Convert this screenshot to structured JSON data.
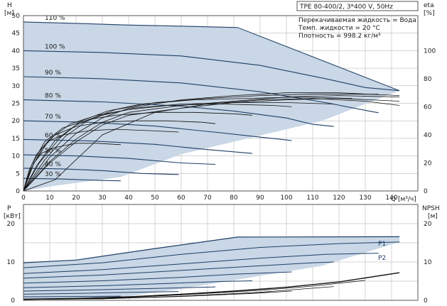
{
  "title": "TPE 80-400/2, 3*400 V, 50Hz",
  "info_lines": [
    "Перекачиваемая жидкость = Вода",
    "Темп. жидкости = 20 °C",
    "Плотность = 998.2 кг/м³"
  ],
  "colors": {
    "envelope": "#c9d7e6",
    "curve": "#1f3f66",
    "eta": "#111111",
    "grid": "#aaaaaa",
    "text": "#1a1a1a"
  },
  "chart_data": [
    {
      "type": "line",
      "name": "head",
      "title": "TPE 80-400/2, 3*400 V, 50Hz",
      "xlabel": "Q [м³/ч]",
      "ylabel_left": [
        "H",
        "[м]"
      ],
      "ylabel_right": [
        "eta",
        "[%]"
      ],
      "xlim": [
        0,
        150
      ],
      "ylim": [
        0,
        50
      ],
      "y2lim": [
        0,
        125
      ],
      "xticks": [
        "0",
        "10",
        "20",
        "30",
        "40",
        "50",
        "60",
        "70",
        "80",
        "90",
        "100",
        "110",
        "120",
        "130",
        "140"
      ],
      "yticks": [
        "0",
        "5",
        "10",
        "15",
        "20",
        "25",
        "30",
        "35",
        "40",
        "45",
        "50"
      ],
      "y2ticks": [
        "0",
        "20",
        "40",
        "60",
        "80",
        "100"
      ],
      "grid": true,
      "envelope": [
        [
          0,
          48.2
        ],
        [
          81.5,
          46.6
        ],
        [
          143,
          28.6
        ],
        [
          113.5,
          20
        ],
        [
          60,
          10.5
        ],
        [
          37,
          4
        ],
        [
          12,
          1.5
        ],
        [
          0,
          0
        ]
      ],
      "series": [
        {
          "label": "110 %",
          "points": [
            [
              0,
              48.2
            ],
            [
              20,
              47.8
            ],
            [
              40,
              47.3
            ],
            [
              60,
              47.0
            ],
            [
              81.5,
              46.6
            ]
          ]
        },
        {
          "label": "100 %",
          "points": [
            [
              0,
              40.0
            ],
            [
              30,
              39.5
            ],
            [
              60,
              38.5
            ],
            [
              90,
              35.8
            ],
            [
              115,
              32.0
            ],
            [
              130,
              29.5
            ],
            [
              143,
              28.6
            ]
          ]
        },
        {
          "label": "90 %",
          "points": [
            [
              0,
              32.6
            ],
            [
              30,
              32.0
            ],
            [
              60,
              30.8
            ],
            [
              90,
              28.3
            ],
            [
              115,
              25.2
            ],
            [
              130,
              23.0
            ],
            [
              135,
              22.3
            ]
          ]
        },
        {
          "label": "80 %",
          "points": [
            [
              0,
              26.0
            ],
            [
              30,
              25.4
            ],
            [
              60,
              24.2
            ],
            [
              80,
              22.8
            ],
            [
              100,
              20.8
            ],
            [
              110,
              19.0
            ],
            [
              118,
              18.4
            ]
          ]
        },
        {
          "label": "70 %",
          "points": [
            [
              0,
              20.0
            ],
            [
              25,
              19.6
            ],
            [
              50,
              18.5
            ],
            [
              75,
              16.6
            ],
            [
              92,
              15.2
            ],
            [
              102,
              14.4
            ]
          ]
        },
        {
          "label": "60 %",
          "points": [
            [
              0,
              14.7
            ],
            [
              25,
              14.3
            ],
            [
              50,
              13.3
            ],
            [
              70,
              11.8
            ],
            [
              87,
              10.7
            ]
          ]
        },
        {
          "label": "50 %",
          "points": [
            [
              0,
              10.3
            ],
            [
              20,
              10.0
            ],
            [
              40,
              9.3
            ],
            [
              60,
              8.0
            ],
            [
              73,
              7.6
            ]
          ]
        },
        {
          "label": "40 %",
          "points": [
            [
              0,
              6.5
            ],
            [
              15,
              6.3
            ],
            [
              30,
              5.8
            ],
            [
              45,
              5.0
            ],
            [
              59,
              4.7
            ]
          ]
        },
        {
          "label": "30 %",
          "points": [
            [
              0,
              3.6
            ],
            [
              15,
              3.4
            ],
            [
              30,
              3.0
            ],
            [
              37,
              2.9
            ]
          ]
        }
      ],
      "eta_curves": [
        [
          [
            0,
            0
          ],
          [
            10,
            21
          ],
          [
            20,
            37
          ],
          [
            30,
            49
          ],
          [
            40,
            56
          ],
          [
            60,
            61
          ],
          [
            80,
            64
          ],
          [
            100,
            67
          ],
          [
            120,
            68
          ],
          [
            143,
            67
          ]
        ],
        [
          [
            0,
            0
          ],
          [
            10,
            20
          ],
          [
            20,
            35
          ],
          [
            30,
            47
          ],
          [
            40,
            54
          ],
          [
            60,
            59
          ],
          [
            80,
            63
          ],
          [
            100,
            65
          ],
          [
            120,
            66
          ],
          [
            143,
            64
          ]
        ],
        [
          [
            0,
            0
          ],
          [
            10,
            24
          ],
          [
            20,
            41
          ],
          [
            30,
            52
          ],
          [
            40,
            59
          ],
          [
            60,
            65
          ],
          [
            80,
            68
          ],
          [
            100,
            70
          ],
          [
            120,
            70
          ],
          [
            143,
            68
          ]
        ],
        [
          [
            0,
            0
          ],
          [
            8,
            22
          ],
          [
            16,
            39
          ],
          [
            25,
            51
          ],
          [
            35,
            58
          ],
          [
            50,
            63
          ],
          [
            70,
            66
          ],
          [
            90,
            68
          ],
          [
            110,
            69
          ],
          [
            135,
            69
          ]
        ],
        [
          [
            0,
            0
          ],
          [
            6,
            20
          ],
          [
            14,
            38
          ],
          [
            22,
            50
          ],
          [
            32,
            57
          ],
          [
            45,
            62
          ],
          [
            65,
            65
          ],
          [
            85,
            66
          ],
          [
            105,
            67
          ],
          [
            125,
            66
          ]
        ],
        [
          [
            0,
            0
          ],
          [
            5,
            18
          ],
          [
            12,
            36
          ],
          [
            20,
            47
          ],
          [
            30,
            54
          ],
          [
            42,
            59
          ],
          [
            60,
            62
          ],
          [
            80,
            63
          ],
          [
            100,
            63
          ],
          [
            118,
            62
          ]
        ],
        [
          [
            0,
            0
          ],
          [
            4,
            20
          ],
          [
            10,
            37
          ],
          [
            18,
            48
          ],
          [
            28,
            54
          ],
          [
            40,
            58
          ],
          [
            55,
            61
          ],
          [
            75,
            62
          ],
          [
            95,
            61
          ],
          [
            102,
            60
          ]
        ],
        [
          [
            0,
            0
          ],
          [
            3,
            18
          ],
          [
            8,
            35
          ],
          [
            15,
            45
          ],
          [
            25,
            51
          ],
          [
            35,
            54
          ],
          [
            50,
            56
          ],
          [
            65,
            56
          ],
          [
            80,
            55
          ],
          [
            87,
            54
          ]
        ],
        [
          [
            0,
            0
          ],
          [
            3,
            16
          ],
          [
            7,
            30
          ],
          [
            12,
            40
          ],
          [
            20,
            46
          ],
          [
            30,
            49
          ],
          [
            42,
            50
          ],
          [
            55,
            50
          ],
          [
            68,
            49
          ],
          [
            73,
            48
          ]
        ],
        [
          [
            0,
            0
          ],
          [
            2,
            14
          ],
          [
            5,
            26
          ],
          [
            9,
            35
          ],
          [
            15,
            40
          ],
          [
            25,
            43
          ],
          [
            35,
            44
          ],
          [
            48,
            43
          ],
          [
            59,
            42
          ]
        ],
        [
          [
            0,
            0
          ],
          [
            2,
            11
          ],
          [
            4,
            20
          ],
          [
            7,
            27
          ],
          [
            12,
            31
          ],
          [
            20,
            34
          ],
          [
            28,
            34
          ],
          [
            37,
            33
          ]
        ],
        [
          [
            0,
            0
          ],
          [
            12,
            8
          ],
          [
            30,
            40
          ],
          [
            50,
            56
          ],
          [
            70,
            62
          ],
          [
            90,
            65
          ],
          [
            110,
            66
          ],
          [
            130,
            64
          ],
          [
            143,
            61
          ]
        ]
      ]
    },
    {
      "type": "line",
      "name": "power-npsh",
      "ylabel_left": [
        "P",
        "[кВт]"
      ],
      "ylabel_right": [
        "NPSH",
        "[м]"
      ],
      "xlim": [
        0,
        150
      ],
      "ylim": [
        0,
        25
      ],
      "yticks": [
        "0",
        "10",
        "20"
      ],
      "y2ticks": [
        "0",
        "10",
        "20"
      ],
      "grid": true,
      "envelope": [
        [
          0,
          9.8
        ],
        [
          20,
          10.5
        ],
        [
          50,
          13.5
        ],
        [
          81.5,
          16.5
        ],
        [
          143,
          16.6
        ],
        [
          143,
          15.2
        ],
        [
          113.5,
          9.0
        ],
        [
          60,
          3.0
        ],
        [
          37,
          0.8
        ],
        [
          0,
          0.3
        ]
      ],
      "series_labels": [
        "P1",
        "P2"
      ],
      "p_curves": [
        [
          [
            0,
            9.8
          ],
          [
            20,
            10.5
          ],
          [
            50,
            13.5
          ],
          [
            81.5,
            16.5
          ],
          [
            143,
            16.6
          ]
        ],
        [
          [
            0,
            8.5
          ],
          [
            30,
            9.8
          ],
          [
            60,
            12.0
          ],
          [
            90,
            13.8
          ],
          [
            120,
            14.8
          ],
          [
            143,
            15.2
          ]
        ],
        [
          [
            0,
            7.0
          ],
          [
            30,
            8.0
          ],
          [
            60,
            9.5
          ],
          [
            90,
            11.0
          ],
          [
            115,
            12.0
          ],
          [
            135,
            12.3
          ]
        ],
        [
          [
            0,
            5.8
          ],
          [
            30,
            6.6
          ],
          [
            60,
            7.8
          ],
          [
            90,
            9.0
          ],
          [
            110,
            9.8
          ],
          [
            118,
            10.0
          ]
        ],
        [
          [
            0,
            4.5
          ],
          [
            30,
            5.1
          ],
          [
            60,
            6.0
          ],
          [
            80,
            6.8
          ],
          [
            102,
            7.4
          ]
        ],
        [
          [
            0,
            3.3
          ],
          [
            30,
            3.8
          ],
          [
            55,
            4.4
          ],
          [
            75,
            4.9
          ],
          [
            87,
            5.1
          ]
        ],
        [
          [
            0,
            2.4
          ],
          [
            25,
            2.7
          ],
          [
            50,
            3.1
          ],
          [
            73,
            3.5
          ]
        ],
        [
          [
            0,
            1.6
          ],
          [
            20,
            1.8
          ],
          [
            40,
            2.1
          ],
          [
            59,
            2.3
          ]
        ],
        [
          [
            0,
            0.9
          ],
          [
            20,
            1.0
          ],
          [
            37,
            1.1
          ]
        ]
      ],
      "npsh_curves": [
        [
          [
            0,
            0.3
          ],
          [
            20,
            0.5
          ],
          [
            40,
            0.9
          ],
          [
            60,
            1.6
          ],
          [
            80,
            2.4
          ],
          [
            100,
            3.4
          ],
          [
            120,
            4.8
          ],
          [
            143,
            7.2
          ]
        ],
        [
          [
            0,
            0.2
          ],
          [
            30,
            0.5
          ],
          [
            60,
            1.4
          ],
          [
            90,
            2.6
          ],
          [
            110,
            3.7
          ],
          [
            130,
            5.2
          ]
        ],
        [
          [
            0,
            0.2
          ],
          [
            30,
            0.4
          ],
          [
            60,
            1.1
          ],
          [
            90,
            2.1
          ],
          [
            118,
            3.6
          ]
        ],
        [
          [
            0,
            0.2
          ],
          [
            30,
            0.4
          ],
          [
            60,
            1.0
          ],
          [
            87,
            1.8
          ],
          [
            102,
            2.4
          ]
        ]
      ]
    }
  ]
}
